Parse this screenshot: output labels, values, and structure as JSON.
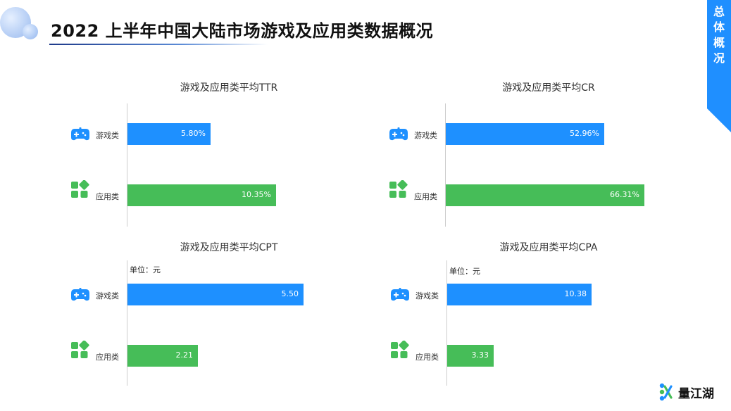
{
  "header": {
    "title": "2022 上半年中国大陆市场游戏及应用类数据概况"
  },
  "side_tab": {
    "chars": [
      "总",
      "体",
      "概",
      "况"
    ]
  },
  "brand": {
    "name": "量江湖"
  },
  "colors": {
    "game": "#1e90ff",
    "app": "#46bd58",
    "tab": "#1f8fff"
  },
  "chart_data": [
    {
      "type": "bar",
      "title": "游戏及应用类平均TTR",
      "unit": "",
      "categories": [
        "游戏类",
        "应用类"
      ],
      "values": [
        5.8,
        10.35
      ],
      "labels": [
        "5.80%",
        "10.35%"
      ],
      "xlim": [
        0,
        14.7
      ]
    },
    {
      "type": "bar",
      "title": "游戏及应用类平均CR",
      "unit": "",
      "categories": [
        "游戏类",
        "应用类"
      ],
      "values": [
        52.96,
        66.31
      ],
      "labels": [
        "52.96%",
        "66.31%"
      ],
      "xlim": [
        0,
        80
      ]
    },
    {
      "type": "bar",
      "title": "游戏及应用类平均CPT",
      "unit": "单位：元",
      "categories": [
        "游戏类",
        "应用类"
      ],
      "values": [
        5.5,
        2.21
      ],
      "labels": [
        "5.50",
        "2.21"
      ],
      "xlim": [
        0,
        6.6
      ]
    },
    {
      "type": "bar",
      "title": "游戏及应用类平均CPA",
      "unit": "单位：元",
      "categories": [
        "游戏类",
        "应用类"
      ],
      "values": [
        10.38,
        3.33
      ],
      "labels": [
        "10.38",
        "3.33"
      ],
      "xlim": [
        0,
        14.5
      ]
    }
  ]
}
